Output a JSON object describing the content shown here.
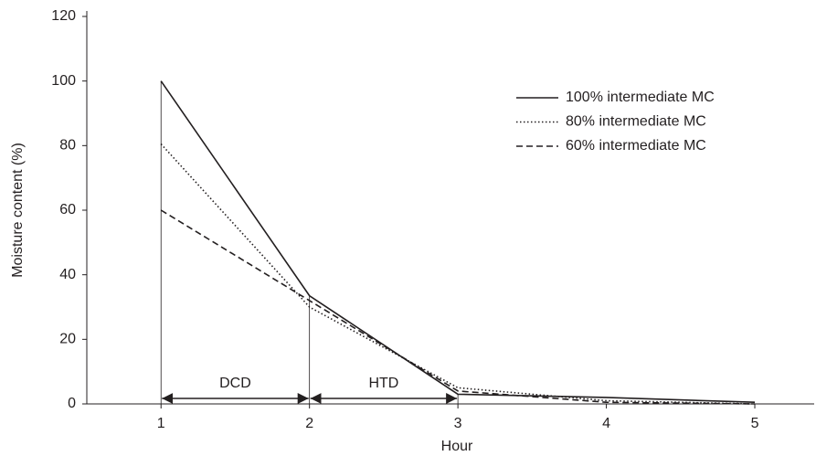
{
  "chart_data": {
    "type": "line",
    "x_label": "Hour",
    "y_label": "Moisture content (%)",
    "x": [
      1,
      2,
      3,
      4,
      5
    ],
    "xlim": [
      0.5,
      5.4
    ],
    "xticks": [
      1,
      2,
      3,
      4,
      5
    ],
    "ylim": [
      0,
      120
    ],
    "yticks": [
      0,
      20,
      40,
      60,
      80,
      100,
      120
    ],
    "grid": false,
    "legend": "upper right",
    "series": [
      {
        "name": "100% intermediate MC",
        "color": "#231f20",
        "dash": "solid",
        "values": [
          100,
          33.5,
          3,
          2,
          0.5
        ]
      },
      {
        "name": "80% intermediate MC",
        "color": "#231f20",
        "dash": "dotted",
        "values": [
          80.5,
          30,
          5,
          1,
          0
        ]
      },
      {
        "name": "60% intermediate MC",
        "color": "#231f20",
        "dash": "dashed",
        "values": [
          60,
          32,
          4,
          0.5,
          0
        ]
      }
    ],
    "annotations": [
      {
        "text": "DCD",
        "x": [
          1,
          2
        ]
      },
      {
        "text": "HTD",
        "x": [
          2,
          3
        ]
      }
    ]
  }
}
